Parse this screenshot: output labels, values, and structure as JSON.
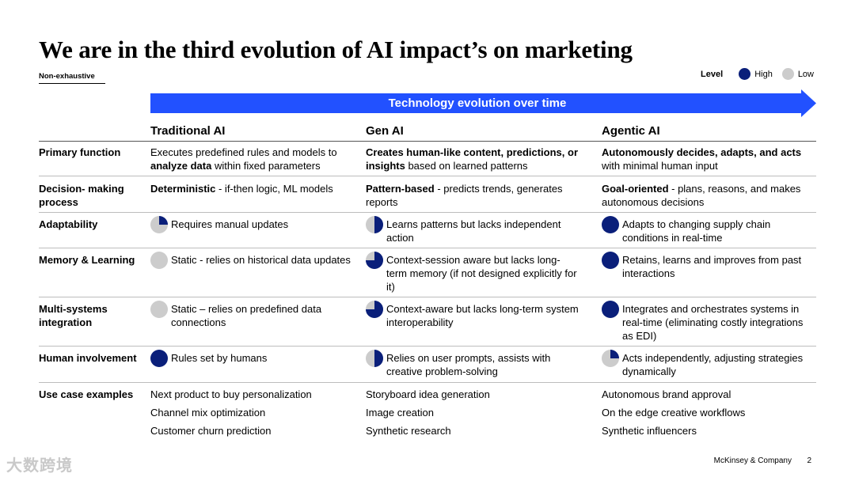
{
  "title": "We are in the third evolution of AI impact’s on marketing",
  "subtitle": "Non-exhaustive",
  "legend": {
    "title": "Level",
    "high": "High",
    "low": "Low",
    "high_color": "#0a1f7a",
    "low_color": "#cccccc"
  },
  "arrow": {
    "label": "Technology evolution over time",
    "color": "#2251ff"
  },
  "columns": [
    "Traditional AI",
    "Gen AI",
    "Agentic AI"
  ],
  "rows": [
    {
      "label": "Primary function",
      "cells": [
        {
          "parts": [
            {
              "t": "Executes predefined rules and models to "
            },
            {
              "t": "analyze data",
              "b": true
            },
            {
              "t": " within fixed parameters"
            }
          ]
        },
        {
          "parts": [
            {
              "t": "Creates human-like content, predictions, or insights",
              "b": true
            },
            {
              "t": " based on learned patterns"
            }
          ]
        },
        {
          "parts": [
            {
              "t": "Autonomously decides, adapts, and acts",
              "b": true
            },
            {
              "t": " with minimal human input"
            }
          ]
        }
      ]
    },
    {
      "label": "Decision- making process",
      "cells": [
        {
          "parts": [
            {
              "t": "Deterministic",
              "b": true
            },
            {
              "t": " - if-then logic, ML models"
            }
          ]
        },
        {
          "parts": [
            {
              "t": "Pattern-based",
              "b": true
            },
            {
              "t": " - predicts trends, generates reports"
            }
          ]
        },
        {
          "parts": [
            {
              "t": "Goal-oriented",
              "b": true
            },
            {
              "t": " - plans, reasons, and makes autonomous decisions"
            }
          ]
        }
      ]
    },
    {
      "label": "Adaptability",
      "cells": [
        {
          "level": 0.25,
          "text": "Requires manual updates"
        },
        {
          "level": 0.5,
          "text": "Learns patterns but lacks independent action"
        },
        {
          "level": 1,
          "text": "Adapts to changing supply chain conditions in real-time"
        }
      ]
    },
    {
      "label": "Memory & Learning",
      "cells": [
        {
          "level": 0,
          "text": "Static - relies on historical data updates"
        },
        {
          "level": 0.75,
          "text": "Context-session aware but lacks long-term memory (if not designed explicitly for it)"
        },
        {
          "level": 1,
          "text": "Retains, learns and improves from past interactions"
        }
      ]
    },
    {
      "label": "Multi-systems integration",
      "cells": [
        {
          "level": 0,
          "text": "Static – relies on predefined data connections"
        },
        {
          "level": 0.75,
          "text": "Context-aware but lacks long-term system interoperability"
        },
        {
          "level": 1,
          "text": "Integrates and orchestrates systems in real-time (eliminating costly integrations as EDI)"
        }
      ]
    },
    {
      "label": "Human involvement",
      "cells": [
        {
          "level": 1,
          "text": "Rules set by humans"
        },
        {
          "level": 0.5,
          "text": "Relies on user prompts, assists with creative problem-solving"
        },
        {
          "level": 0.25,
          "text": "Acts independently, adjusting strategies dynamically"
        }
      ]
    }
  ],
  "use_cases": {
    "label": "Use case examples",
    "columns": [
      [
        "Next product to buy personalization",
        "Channel mix optimization",
        "Customer churn prediction"
      ],
      [
        "Storyboard idea generation",
        "Image creation",
        "Synthetic research"
      ],
      [
        "Autonomous brand approval",
        "On the edge creative workflows",
        "Synthetic influencers"
      ]
    ]
  },
  "footer": {
    "watermark": "大数跨境",
    "brand": "McKinsey & Company",
    "page": "2"
  }
}
